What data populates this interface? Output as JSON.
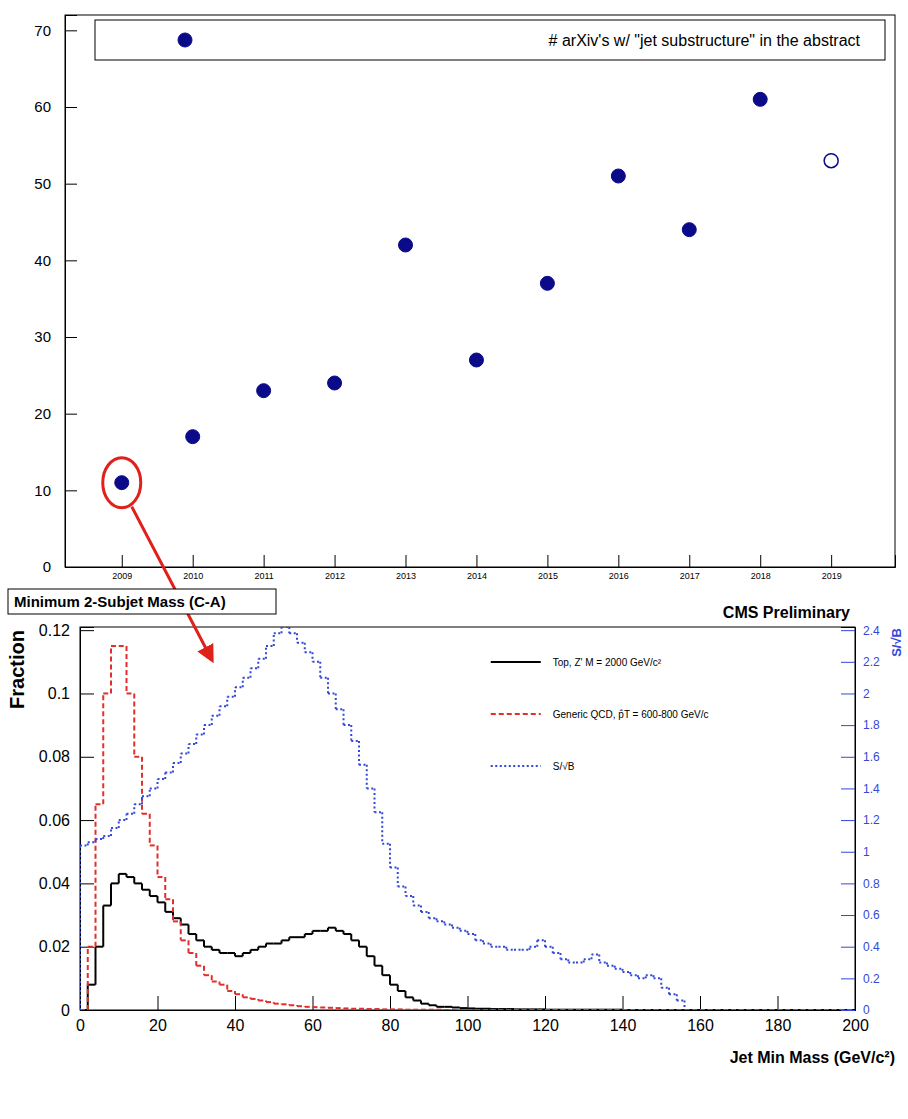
{
  "chart_data": [
    {
      "type": "scatter",
      "xlim": [
        2008.2,
        2019.9
      ],
      "xticks": [
        2009,
        2010,
        2011,
        2012,
        2013,
        2014,
        2015,
        2016,
        2017,
        2018,
        2019
      ],
      "ylim": [
        0,
        72
      ],
      "yticks": [
        0,
        10,
        20,
        30,
        40,
        50,
        60,
        70
      ],
      "grid": false,
      "legend": "top",
      "series": [
        {
          "name": "# arXiv's w/ \"jet substructure\" in the abstract",
          "color": "#0b0b8a",
          "marker": "circle",
          "x": [
            2009,
            2010,
            2011,
            2012,
            2013,
            2014,
            2015,
            2016,
            2017,
            2018
          ],
          "values": [
            11,
            17,
            23,
            24,
            42,
            27,
            37,
            51,
            44,
            61
          ]
        },
        {
          "color": "#0b0b8a",
          "marker": "open-circle",
          "x": [
            2019
          ],
          "values": [
            53
          ]
        }
      ]
    },
    {
      "type": "histogram",
      "title": "Minimum 2-Subjet Mass (C-A)",
      "annotations": [
        "CMS Preliminary"
      ],
      "x_label": "Jet Min Mass (GeV/c²)",
      "y_label": "Fraction",
      "y2_label": "S/√B",
      "xlim": [
        0,
        200
      ],
      "xticks": [
        0,
        20,
        40,
        60,
        80,
        100,
        120,
        140,
        160,
        180,
        200
      ],
      "ylim": [
        0,
        0.121
      ],
      "yticks": [
        0,
        0.02,
        0.04,
        0.06,
        0.08,
        0.1,
        0.12
      ],
      "y2lim": [
        0,
        2.42
      ],
      "y2ticks": [
        0,
        0.2,
        0.4,
        0.6,
        0.8,
        1,
        1.2,
        1.4,
        1.6,
        1.8,
        2,
        2.2,
        2.4
      ],
      "grid": false,
      "legend": "right",
      "bins": [
        0,
        2,
        4,
        6,
        8,
        10,
        12,
        14,
        16,
        18,
        20,
        22,
        24,
        26,
        28,
        30,
        32,
        34,
        36,
        38,
        40,
        42,
        44,
        46,
        48,
        50,
        52,
        54,
        56,
        58,
        60,
        62,
        64,
        66,
        68,
        70,
        72,
        74,
        76,
        78,
        80,
        82,
        84,
        86,
        88,
        90,
        92,
        94,
        96,
        98,
        100,
        102,
        104,
        106,
        108,
        110,
        112,
        114,
        116,
        118,
        120,
        122,
        124,
        126,
        128,
        130,
        132,
        134,
        136,
        138,
        140,
        142,
        144,
        146,
        148,
        150,
        152,
        154,
        156,
        158,
        160,
        162,
        164,
        166,
        168,
        170,
        172,
        174,
        176,
        178,
        180,
        182,
        184,
        186,
        188,
        190,
        192,
        194,
        196,
        198,
        200
      ],
      "series": [
        {
          "name": "Top, Z' M = 2000 GeV/c²",
          "color": "#000000",
          "line_style": "solid",
          "values": [
            0,
            0.008,
            0.02,
            0.033,
            0.04,
            0.043,
            0.042,
            0.04,
            0.038,
            0.036,
            0.034,
            0.031,
            0.029,
            0.027,
            0.024,
            0.022,
            0.02,
            0.019,
            0.018,
            0.018,
            0.017,
            0.018,
            0.019,
            0.02,
            0.021,
            0.021,
            0.022,
            0.023,
            0.023,
            0.024,
            0.025,
            0.025,
            0.026,
            0.025,
            0.024,
            0.022,
            0.02,
            0.017,
            0.014,
            0.011,
            0.008,
            0.006,
            0.004,
            0.003,
            0.002,
            0.0015,
            0.001,
            0.001,
            0.0008,
            0.0006,
            0.0005,
            0.0004,
            0.0004,
            0.0003,
            0.0003,
            0.0003,
            0.0002,
            0.0002,
            0.0002,
            0.0002,
            0.0001,
            0.0001,
            0.0001,
            0.0001,
            0.0001,
            0.0001,
            0.0001,
            0.0001,
            0.0001,
            0.0001,
            0,
            0,
            0,
            0,
            0,
            0,
            0,
            0,
            0,
            0,
            0,
            0,
            0,
            0,
            0,
            0,
            0,
            0,
            0,
            0,
            0,
            0,
            0,
            0,
            0,
            0,
            0,
            0,
            0,
            0
          ]
        },
        {
          "name": "Generic QCD, p̂T = 600-800 GeV/c",
          "color": "#e0302b",
          "line_style": "dashed",
          "values": [
            0,
            0.02,
            0.065,
            0.1,
            0.115,
            0.115,
            0.1,
            0.08,
            0.062,
            0.052,
            0.042,
            0.035,
            0.028,
            0.022,
            0.018,
            0.014,
            0.011,
            0.009,
            0.008,
            0.006,
            0.005,
            0.004,
            0.0035,
            0.003,
            0.0025,
            0.002,
            0.0018,
            0.0015,
            0.0012,
            0.001,
            0.0009,
            0.0008,
            0.0007,
            0.0006,
            0.0005,
            0.0004,
            0.0004,
            0.0003,
            0.0003,
            0.0002,
            0.0002,
            0.0002,
            0.0001,
            0.0001,
            0.0001,
            0.0001,
            0.0001,
            0,
            0,
            0,
            0,
            0,
            0,
            0,
            0,
            0,
            0,
            0,
            0,
            0,
            0,
            0,
            0,
            0,
            0,
            0,
            0,
            0,
            0,
            0,
            0,
            0,
            0,
            0,
            0,
            0,
            0,
            0,
            0,
            0,
            0,
            0,
            0,
            0,
            0,
            0,
            0,
            0,
            0,
            0,
            0,
            0,
            0,
            0,
            0,
            0,
            0,
            0,
            0,
            0
          ]
        },
        {
          "name": "S/√B",
          "color": "#3348d6",
          "line_style": "dotted",
          "axis": "y2",
          "values": [
            1.04,
            1.06,
            1.08,
            1.1,
            1.15,
            1.2,
            1.24,
            1.3,
            1.35,
            1.4,
            1.46,
            1.5,
            1.56,
            1.62,
            1.68,
            1.74,
            1.8,
            1.86,
            1.92,
            1.98,
            2.04,
            2.1,
            2.16,
            2.22,
            2.3,
            2.38,
            2.42,
            2.38,
            2.32,
            2.26,
            2.2,
            2.1,
            2.0,
            1.9,
            1.8,
            1.7,
            1.55,
            1.4,
            1.25,
            1.05,
            0.9,
            0.78,
            0.72,
            0.66,
            0.62,
            0.58,
            0.56,
            0.54,
            0.52,
            0.5,
            0.48,
            0.44,
            0.42,
            0.4,
            0.4,
            0.38,
            0.38,
            0.38,
            0.4,
            0.44,
            0.4,
            0.36,
            0.32,
            0.3,
            0.3,
            0.32,
            0.35,
            0.3,
            0.28,
            0.26,
            0.24,
            0.22,
            0.2,
            0.22,
            0.2,
            0.14,
            0.1,
            0.06,
            null,
            null,
            null,
            null,
            null,
            null,
            null,
            null,
            null,
            null,
            null,
            null,
            null,
            null,
            null,
            null,
            null,
            null,
            null,
            null,
            null,
            null
          ]
        }
      ]
    }
  ]
}
